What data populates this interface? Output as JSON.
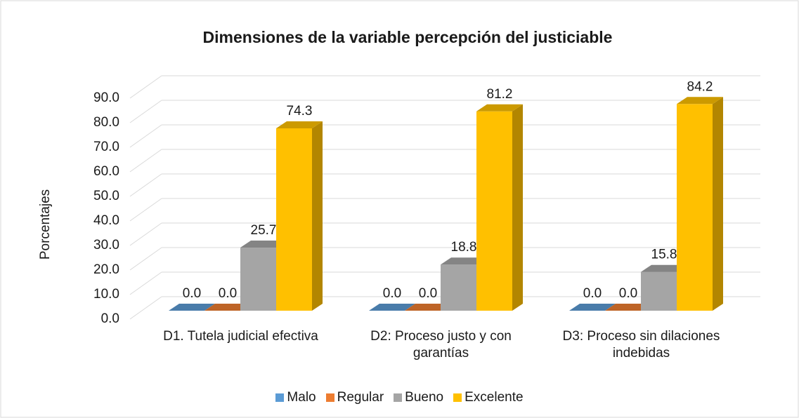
{
  "chart_data": {
    "type": "bar3d",
    "title": "Dimensiones de la variable percepción del justiciable",
    "ylabel": "Porcentajes",
    "categories": [
      "D1. Tutela judicial efectiva",
      "D2: Proceso justo y con garantías",
      "D3: Proceso sin dilaciones indebidas"
    ],
    "series": [
      {
        "name": "Malo",
        "color": "#5b9bd5",
        "values": [
          0,
          0,
          0
        ],
        "value_labels": [
          "0.0",
          "0.0",
          "0.0"
        ]
      },
      {
        "name": "Regular",
        "color": "#ed7d31",
        "values": [
          0,
          0,
          0
        ],
        "value_labels": [
          "0.0",
          "0.0",
          "0.0"
        ]
      },
      {
        "name": "Bueno",
        "color": "#a5a5a5",
        "values": [
          25.7,
          18.8,
          15.8
        ],
        "value_labels": [
          "25.7",
          "18.8",
          "15.8"
        ]
      },
      {
        "name": "Excelente",
        "color": "#ffc000",
        "values": [
          74.3,
          81.2,
          84.2
        ],
        "value_labels": [
          "74.3",
          "81.2",
          "84.2"
        ]
      }
    ],
    "ylim": [
      0,
      90
    ],
    "yticks": [
      {
        "value": 0,
        "label": "0.0"
      },
      {
        "value": 10,
        "label": "10.0"
      },
      {
        "value": 20,
        "label": "20.0"
      },
      {
        "value": 30,
        "label": "30.0"
      },
      {
        "value": 40,
        "label": "40.0"
      },
      {
        "value": 50,
        "label": "50.0"
      },
      {
        "value": 60,
        "label": "60.0"
      },
      {
        "value": 70,
        "label": "70.0"
      },
      {
        "value": 80,
        "label": "80.0"
      },
      {
        "value": 90,
        "label": "90.0"
      }
    ],
    "grid": true,
    "legend": "bottom"
  }
}
